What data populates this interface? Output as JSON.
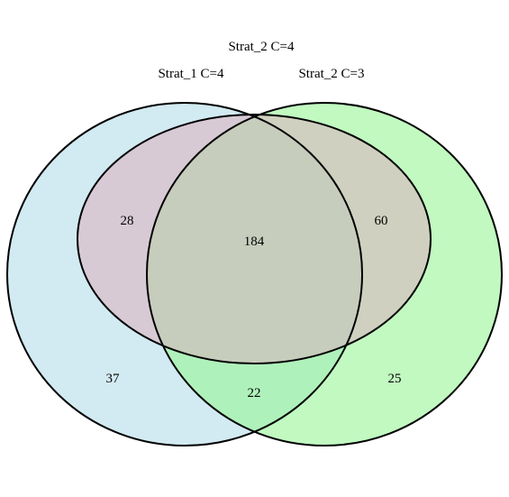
{
  "venn": {
    "sets": [
      {
        "key": "a",
        "label": "Strat_1 C=4",
        "fill": "#add8e6"
      },
      {
        "key": "b",
        "label": "Strat_2 C=4",
        "fill": "#dbaebe"
      },
      {
        "key": "c",
        "label": "Strat_2 C=3",
        "fill": "#98f598"
      }
    ],
    "counts": {
      "a_only": "37",
      "b_not_c": "28",
      "b_c": "184",
      "b_not_a": "60",
      "a_c_not_b": "22",
      "c_only": "25"
    },
    "colors": {
      "outline": "#000000",
      "background": "#ffffff"
    }
  }
}
